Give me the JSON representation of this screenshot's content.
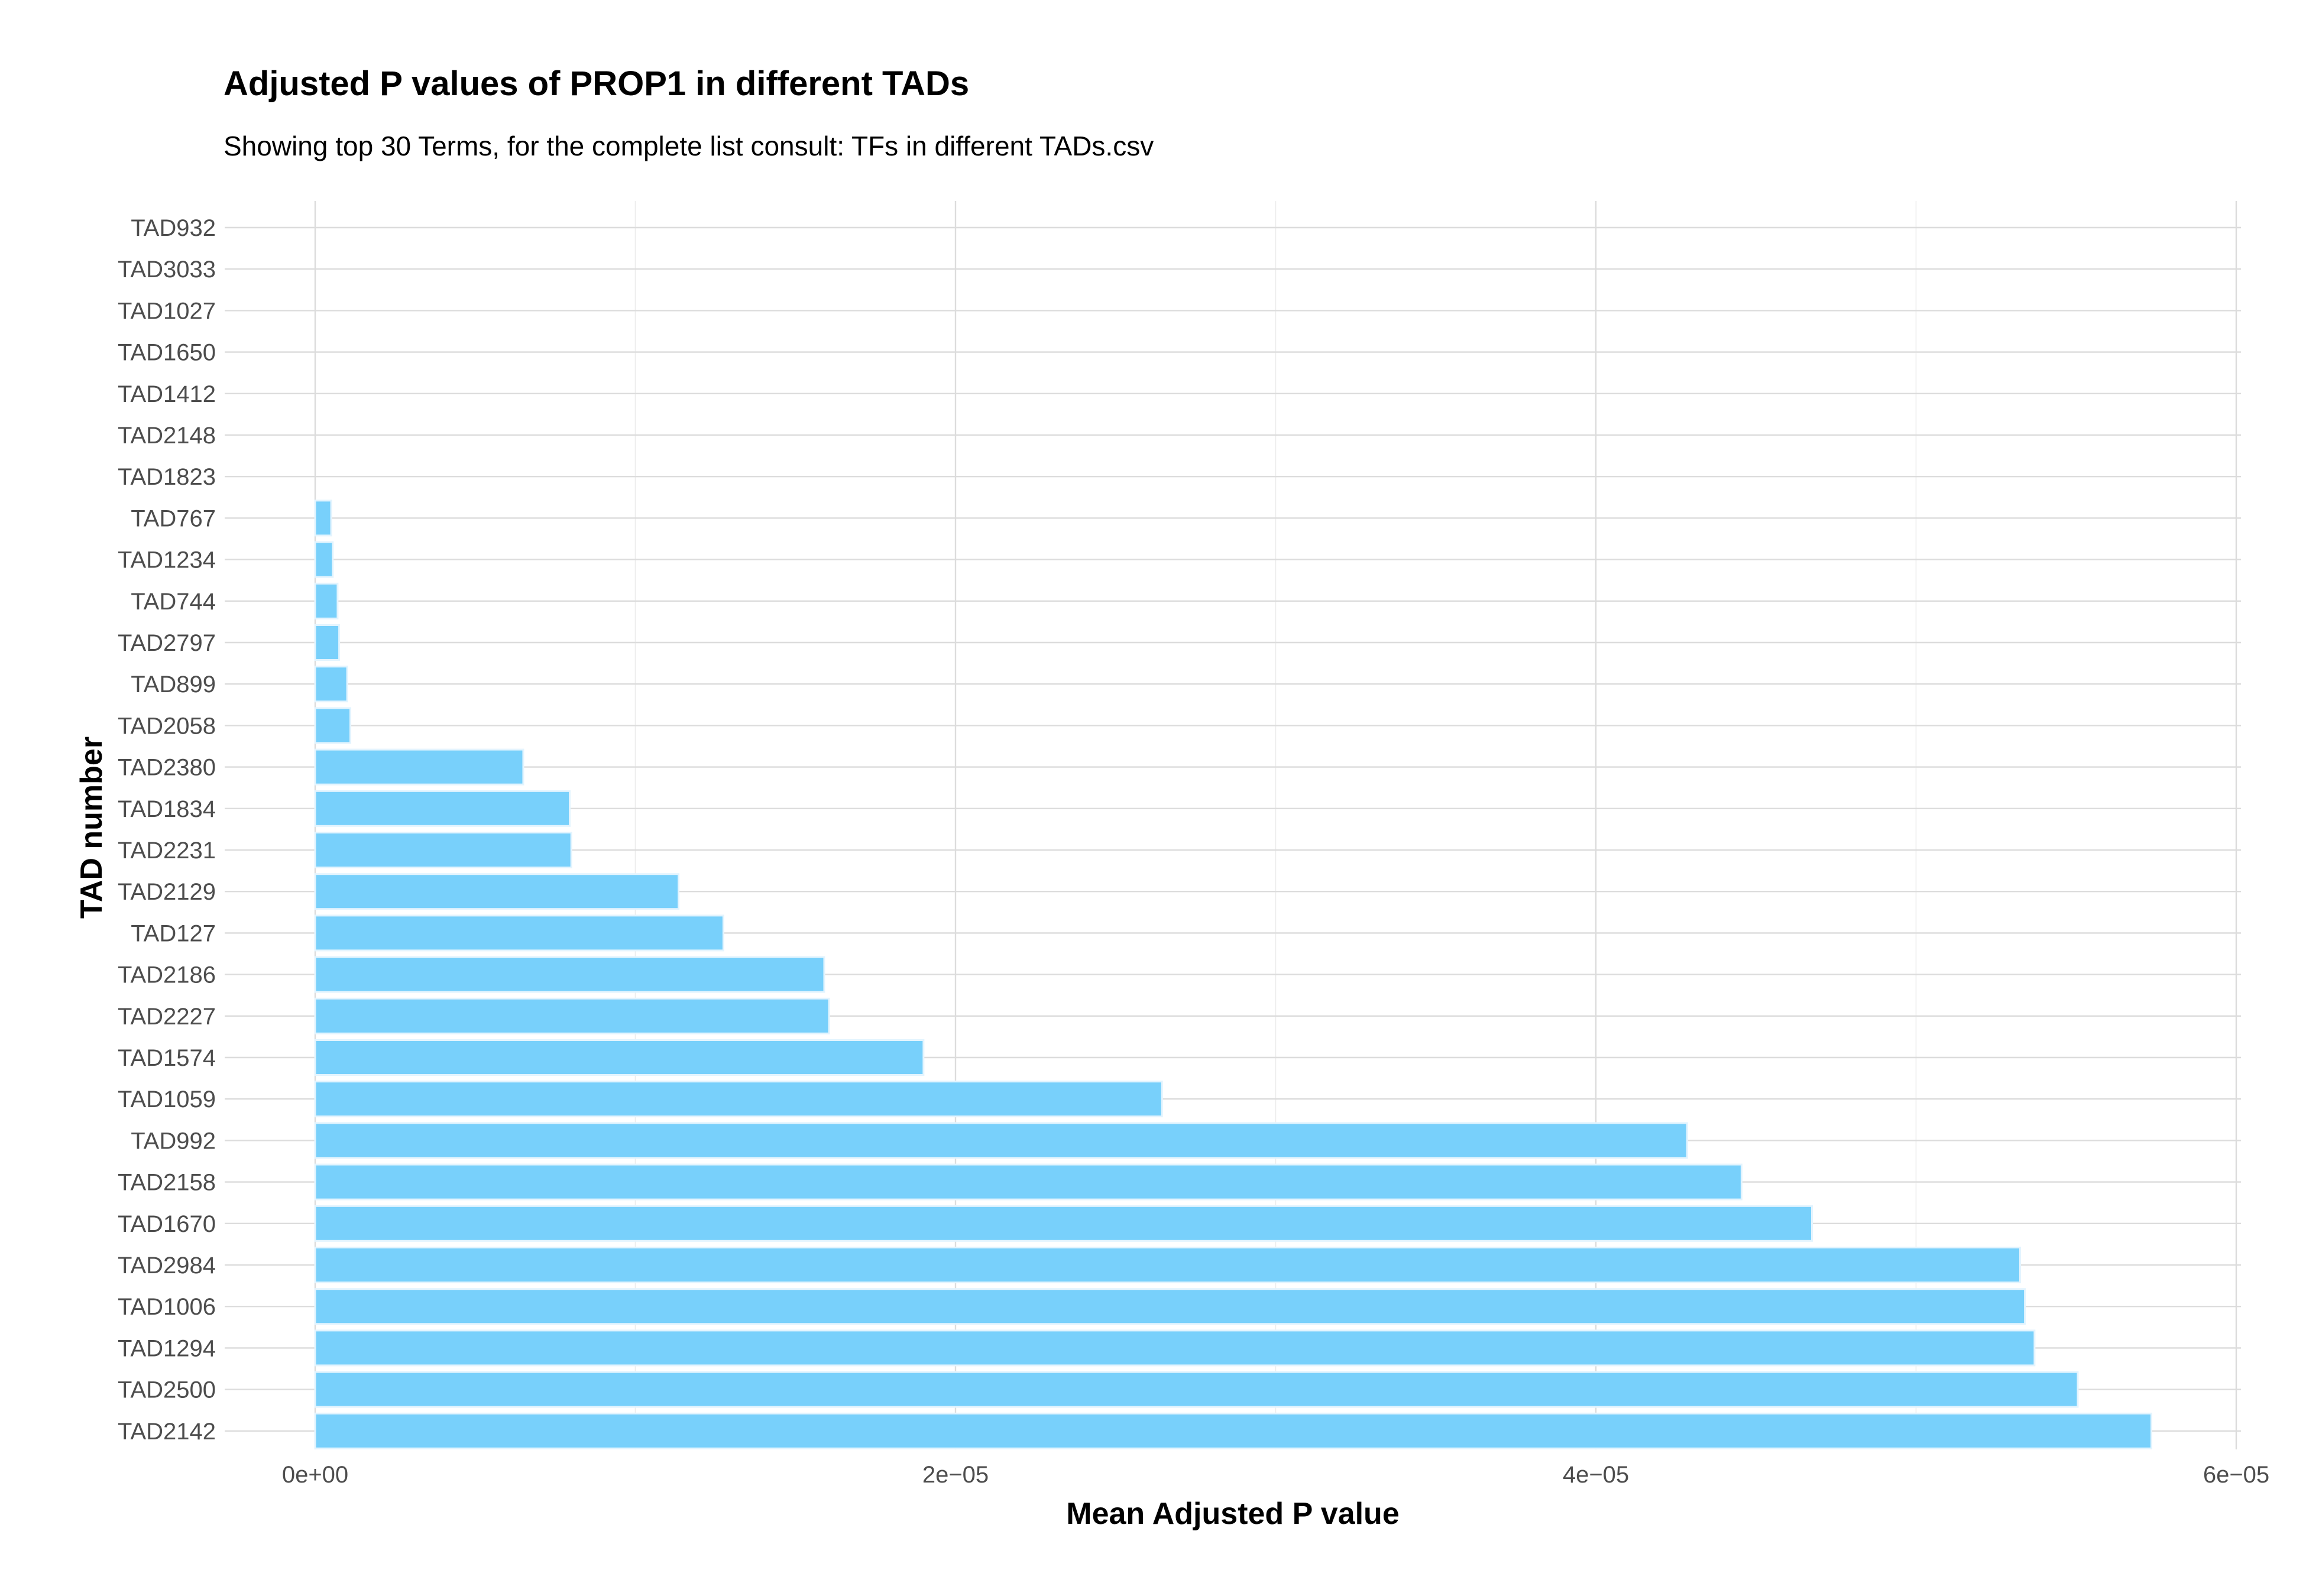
{
  "chart_data": {
    "type": "bar",
    "orientation": "horizontal",
    "title": "Adjusted P values of PROP1 in different TADs",
    "subtitle": "Showing top 30 Terms, for the complete list consult: TFs in different TADs.csv",
    "xlabel": "Mean Adjusted P value",
    "ylabel": "TAD number",
    "xlim": [
      0,
      6e-05
    ],
    "x_ticks": [
      0,
      2e-05,
      4e-05,
      6e-05
    ],
    "x_tick_labels": [
      "0e+00",
      "2e−05",
      "4e−05",
      "6e−05"
    ],
    "grid": true,
    "bar_color": "#78d0fb",
    "categories": [
      "TAD932",
      "TAD3033",
      "TAD1027",
      "TAD1650",
      "TAD1412",
      "TAD2148",
      "TAD1823",
      "TAD767",
      "TAD1234",
      "TAD744",
      "TAD2797",
      "TAD899",
      "TAD2058",
      "TAD2380",
      "TAD1834",
      "TAD2231",
      "TAD2129",
      "TAD127",
      "TAD2186",
      "TAD2227",
      "TAD1574",
      "TAD1059",
      "TAD992",
      "TAD2158",
      "TAD1670",
      "TAD2984",
      "TAD1006",
      "TAD1294",
      "TAD2500",
      "TAD2142"
    ],
    "values": [
      0,
      0,
      0,
      0,
      0,
      0,
      0,
      5e-07,
      5.5e-07,
      7e-07,
      7.5e-07,
      1e-06,
      1.1e-06,
      6.5e-06,
      7.95e-06,
      8e-06,
      1.135e-05,
      1.275e-05,
      1.59e-05,
      1.605e-05,
      1.9e-05,
      2.645e-05,
      4.285e-05,
      4.455e-05,
      4.675e-05,
      5.325e-05,
      5.34e-05,
      5.37e-05,
      5.505e-05,
      5.735e-05
    ]
  }
}
